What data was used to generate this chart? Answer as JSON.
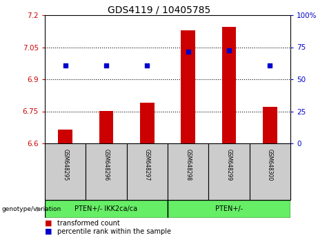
{
  "title": "GDS4119 / 10405785",
  "samples": [
    "GSM648295",
    "GSM648296",
    "GSM648297",
    "GSM648298",
    "GSM648299",
    "GSM648300"
  ],
  "bar_values": [
    6.665,
    6.75,
    6.79,
    7.13,
    7.145,
    6.77
  ],
  "percentile_values": [
    6.965,
    6.965,
    6.965,
    7.03,
    7.035,
    6.965
  ],
  "ymin": 6.6,
  "ymax": 7.2,
  "yticks_left": [
    6.6,
    6.75,
    6.9,
    7.05,
    7.2
  ],
  "yticks_right": [
    0,
    25,
    50,
    75,
    100
  ],
  "bar_color": "#cc0000",
  "dot_color": "#0000cc",
  "group1_label": "PTEN+/- IKK2ca/ca",
  "group2_label": "PTEN+/-",
  "group_bg_color": "#66ee66",
  "sample_bg_color": "#cccccc",
  "legend_bar_label": "transformed count",
  "legend_dot_label": "percentile rank within the sample",
  "genotype_label": "genotype/variation"
}
